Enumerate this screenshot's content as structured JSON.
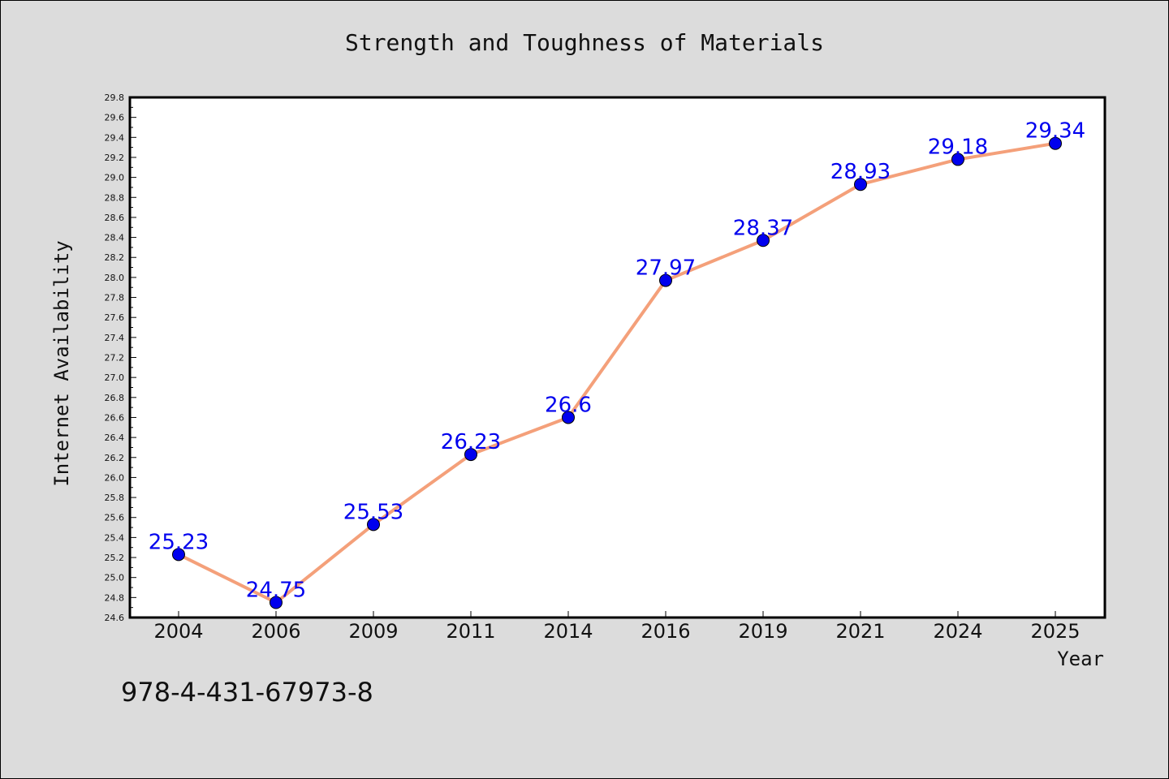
{
  "chart_data": {
    "type": "line",
    "title": "Strength and Toughness of Materials",
    "xlabel": "Year",
    "ylabel": "Internet Availability",
    "categories": [
      "2004",
      "2006",
      "2009",
      "2011",
      "2014",
      "2016",
      "2019",
      "2021",
      "2024",
      "2025"
    ],
    "series": [
      {
        "values": [
          25.23,
          24.75,
          25.53,
          26.23,
          26.6,
          27.97,
          28.37,
          28.93,
          29.18,
          29.34
        ],
        "data_labels": [
          "25.23",
          "24.75",
          "25.53",
          "26.23",
          "26.6",
          "27.97",
          "28.37",
          "28.93",
          "29.18",
          "29.34"
        ],
        "line_color": "#f4a07a",
        "marker_color": "#0000ee",
        "label_color": "#0000ee"
      }
    ],
    "ylim": [
      24.6,
      29.8
    ],
    "y_ticks": [
      "24.6",
      "24.8",
      "25.0",
      "25.2",
      "25.4",
      "25.6",
      "25.8",
      "26.0",
      "26.2",
      "26.4",
      "26.6",
      "26.8",
      "27.0",
      "27.2",
      "27.4",
      "27.6",
      "27.8",
      "28.0",
      "28.2",
      "28.4",
      "28.6",
      "28.8",
      "29.0",
      "29.2",
      "29.4",
      "29.6",
      "29.8"
    ],
    "grid": false,
    "legend": "none"
  },
  "footer": {
    "code": "978-4-431-67973-8"
  }
}
